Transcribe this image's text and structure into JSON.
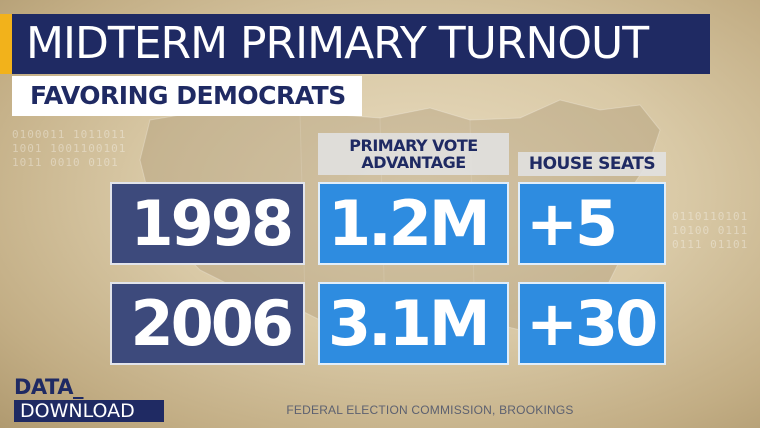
{
  "title": "MIDTERM PRIMARY TURNOUT",
  "subtitle": "FAVORING DEMOCRATS",
  "columns": {
    "vote_line1": "PRIMARY VOTE",
    "vote_line2": "ADVANTAGE",
    "seats": "HOUSE SEATS"
  },
  "rows": [
    {
      "year": "1998",
      "vote_advantage": "1.2M",
      "house_seats": "+5"
    },
    {
      "year": "2006",
      "vote_advantage": "3.1M",
      "house_seats": "+30"
    }
  ],
  "branding": {
    "line1": "DATA_",
    "line2": "DOWNLOAD"
  },
  "source": "FEDERAL ELECTION COMMISSION, BROOKINGS",
  "colors": {
    "navy": "#1f2a63",
    "blue": "#2e8ce0",
    "slate": "#3d4a7c",
    "accent": "#f2b21b"
  }
}
